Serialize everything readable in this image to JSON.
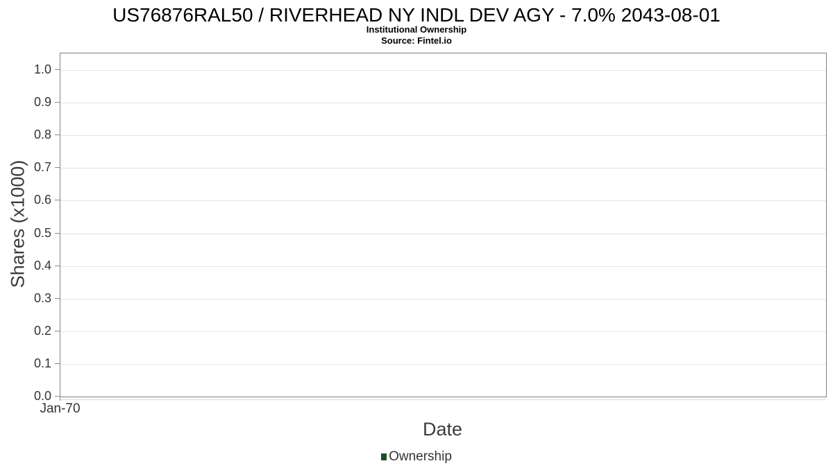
{
  "header": {
    "title": "US76876RAL50 / RIVERHEAD NY INDL DEV AGY - 7.0% 2043-08-01",
    "subtitle": "Institutional Ownership",
    "source": "Source: Fintel.io"
  },
  "axes": {
    "y": {
      "label": "Shares (x1000)",
      "ticks": [
        "0.0",
        "0.1",
        "0.2",
        "0.3",
        "0.4",
        "0.5",
        "0.6",
        "0.7",
        "0.8",
        "0.9",
        "1.0"
      ]
    },
    "x": {
      "label": "Date",
      "ticks": [
        "Jan-70"
      ]
    }
  },
  "legend": {
    "position": "bottom-center",
    "items": [
      {
        "label": "Ownership",
        "color": "#1e4e28"
      }
    ]
  },
  "colors": {
    "background": "#ffffff",
    "title_text": "#000000",
    "axis_text": "#333333",
    "axis_title_text": "#3c3c3c",
    "grid": "#e4e4e4",
    "axis_line": "#808080",
    "tick_mark": "#8a8a8a",
    "sub_axis_line": "#d9d9d9",
    "series_green": "#1e4e28"
  },
  "chart_data": {
    "type": "line",
    "title": "US76876RAL50 / RIVERHEAD NY INDL DEV AGY - 7.0% 2043-08-01",
    "subtitle": "Institutional Ownership",
    "source": "Source: Fintel.io",
    "xlabel": "Date",
    "ylabel": "Shares (x1000)",
    "ylim": [
      0.0,
      1.05
    ],
    "yticks": [
      0.0,
      0.1,
      0.2,
      0.3,
      0.4,
      0.5,
      0.6,
      0.7,
      0.8,
      0.9,
      1.0
    ],
    "xticks": [
      "Jan-70"
    ],
    "grid": "horizontal-only",
    "legend_position": "bottom-center",
    "series": [
      {
        "name": "Ownership",
        "color": "#1e4e28",
        "x": [],
        "values": []
      }
    ]
  }
}
